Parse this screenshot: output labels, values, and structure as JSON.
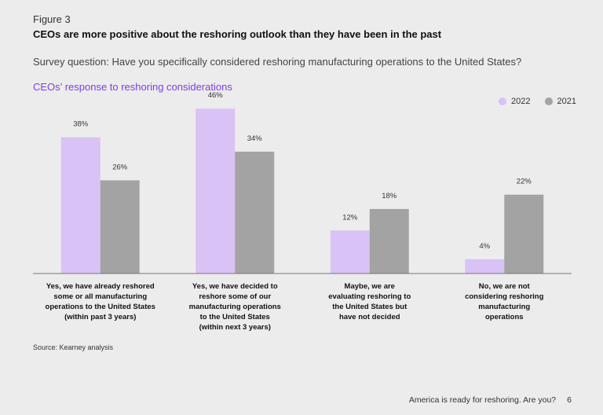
{
  "figure": {
    "label": "Figure 3",
    "title": "CEOs are more positive about the reshoring outlook than they have been in the past",
    "survey_question": "Survey question: Have you specifically considered reshoring manufacturing operations to the United States?",
    "subtitle": "CEOs’ response to reshoring considerations"
  },
  "source": "Source: Kearney analysis",
  "footer": {
    "text": "America is ready for reshoring. Are you?",
    "page": "6"
  },
  "colors": {
    "series_2022": "#d9c2f5",
    "series_2021": "#a3a3a3",
    "accent": "#7b3fe4"
  },
  "chart_data": {
    "type": "bar",
    "title": "CEOs’ response to reshoring considerations",
    "categories": [
      [
        "Yes, we have already reshored",
        "some or all manufacturing",
        "operations to the United States",
        "(within past 3 years)"
      ],
      [
        "Yes, we have decided to",
        "reshore some of our",
        "manufacturing operations",
        "to the United States",
        "(within next 3 years)"
      ],
      [
        "Maybe, we are",
        "evaluating reshoring to",
        "the United States but",
        "have not decided"
      ],
      [
        "No, we are not",
        "considering reshoring",
        "manufacturing",
        "operations"
      ]
    ],
    "series": [
      {
        "name": "2022",
        "values": [
          38,
          46,
          12,
          4
        ]
      },
      {
        "name": "2021",
        "values": [
          26,
          34,
          18,
          22
        ]
      }
    ],
    "value_suffix": "%",
    "ylim": [
      0,
      50
    ],
    "legend_position": "top-right",
    "grid": false
  }
}
